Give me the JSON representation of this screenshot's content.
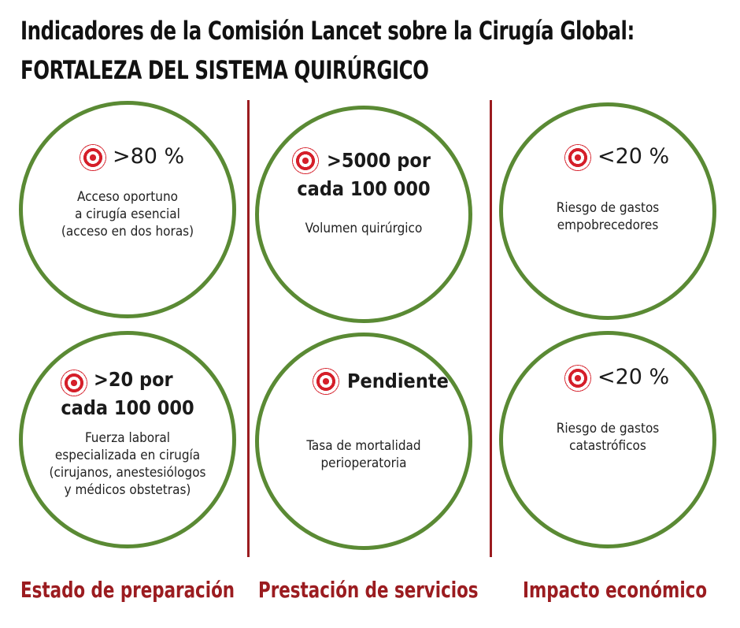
{
  "title": {
    "line1": "Indicadores de la Comisión Lancet sobre la Cirugía Global:",
    "line2": "FORTALEZA DEL SISTEMA QUIRÚRGICO"
  },
  "columns": [
    {
      "label": "Estado de preparación"
    },
    {
      "label": "Prestación de servicios"
    },
    {
      "label": "Impacto económico"
    }
  ],
  "indicators": [
    {
      "value": ">80 %",
      "description": "Acceso oportuno\na cirugía esencial\n(acceso en dos horas)"
    },
    {
      "value_line1": ">20 por",
      "value_line2": "cada 100 000",
      "description": "Fuerza laboral\nespecializada en cirugía\n(cirujanos, anestesiólogos\ny médicos obstetras)"
    },
    {
      "value_line1": ">5000 por",
      "value_line2": "cada 100 000",
      "description": "Volumen quirúrgico"
    },
    {
      "value": "Pendiente",
      "description": "Tasa de mortalidad\nperioperatoria"
    },
    {
      "value": "<20 %",
      "description": "Riesgo de gastos\nempobrecedores"
    },
    {
      "value": "<20 %",
      "description": "Riesgo de gastos\ncatastróficos"
    }
  ],
  "colors": {
    "circle_border": "#5a8a34",
    "divider": "#9b1c20",
    "label": "#9b1c20",
    "target": "#d51f2a"
  },
  "icons": {
    "target": "target-icon"
  }
}
